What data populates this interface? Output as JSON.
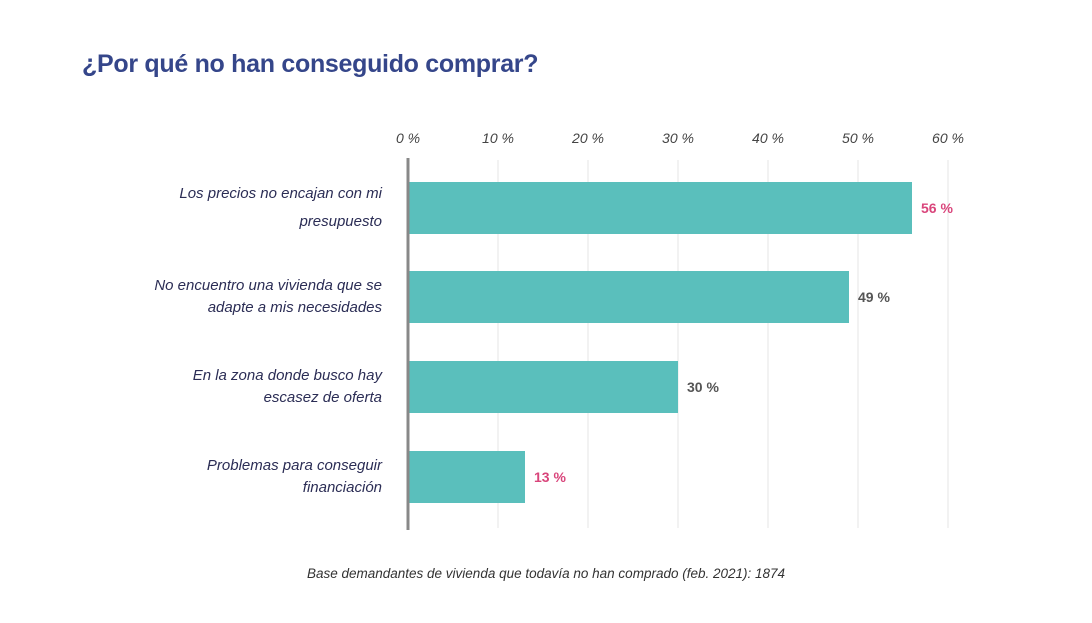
{
  "chart_data": {
    "type": "bar",
    "orientation": "horizontal",
    "title": "¿Por qué no han conseguido comprar?",
    "categories": [
      "Los precios no encajan con mi presupuesto",
      "No encuentro una vivienda que se adapte a mis necesidades",
      "En la zona donde busco hay escasez de oferta",
      "Problemas para conseguir financiación"
    ],
    "category_lines": [
      [
        "Los precios no encajan con mi",
        "presupuesto"
      ],
      [
        "No encuentro una vivienda que se",
        "adapte a mis necesidades"
      ],
      [
        "En la zona donde busco hay",
        "escasez de oferta"
      ],
      [
        "Problemas para conseguir",
        "financiación"
      ]
    ],
    "values": [
      56,
      49,
      30,
      13
    ],
    "data_labels": [
      "56 %",
      "49 %",
      "30 %",
      "13 %"
    ],
    "data_label_colors": [
      "#d9457b",
      "#555555",
      "#555555",
      "#d9457b"
    ],
    "bar_color": "#5abfbc",
    "xlim": [
      0,
      60
    ],
    "xticks": [
      0,
      10,
      20,
      30,
      40,
      50,
      60
    ],
    "xtick_labels": [
      "0 %",
      "10 %",
      "20 %",
      "30 %",
      "40 %",
      "50 %",
      "60 %"
    ],
    "axis_position": "top",
    "grid": true,
    "footnote": "Base demandantes de vivienda que todavía no han comprado (feb. 2021): 1874"
  }
}
